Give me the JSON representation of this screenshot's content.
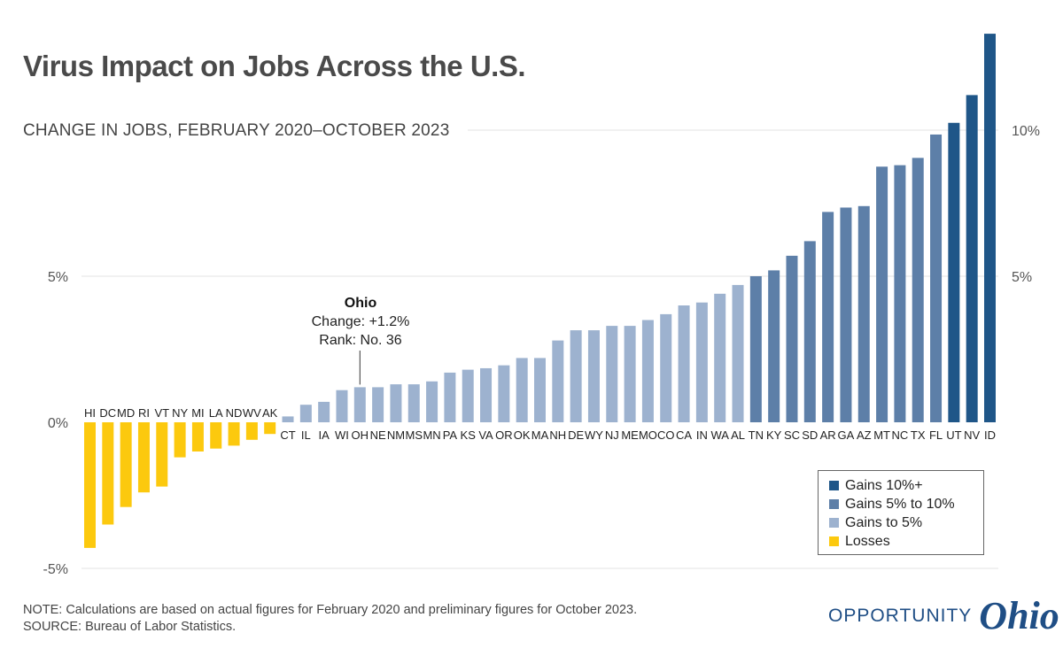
{
  "title": "Virus Impact on Jobs Across the U.S.",
  "subtitle": "CHANGE IN JOBS, FEBRUARY 2020–OCTOBER 2023",
  "annotation": {
    "name": "Ohio",
    "change": "Change: +1.2%",
    "rank": "Rank: No. 36",
    "category": "OH"
  },
  "legend": {
    "items": [
      {
        "label": "Gains 10%+",
        "color": "#1f5688"
      },
      {
        "label": "Gains 5% to 10%",
        "color": "#5d7fa8"
      },
      {
        "label": "Gains to 5%",
        "color": "#9db2cf"
      },
      {
        "label": "Losses",
        "color": "#fcc90e"
      }
    ]
  },
  "footer": {
    "note": "NOTE: Calculations are based on actual figures for February 2020 and preliminary figures for October 2023.",
    "source": "SOURCE: Bureau of Labor Statistics."
  },
  "logo": {
    "word": "OPPORTUNITY",
    "script": "Ohio"
  },
  "chart_data": {
    "type": "bar",
    "categories": [
      "HI",
      "DC",
      "MD",
      "RI",
      "VT",
      "NY",
      "MI",
      "LA",
      "ND",
      "WV",
      "AK",
      "CT",
      "IL",
      "IA",
      "WI",
      "OH",
      "NE",
      "NM",
      "MS",
      "MN",
      "PA",
      "KS",
      "VA",
      "OR",
      "OK",
      "MA",
      "NH",
      "DE",
      "WY",
      "NJ",
      "ME",
      "MO",
      "CO",
      "CA",
      "IN",
      "WA",
      "AL",
      "TN",
      "KY",
      "SC",
      "SD",
      "AR",
      "GA",
      "AZ",
      "MT",
      "NC",
      "TX",
      "FL",
      "UT",
      "NV",
      "ID"
    ],
    "values": [
      -4.3,
      -3.5,
      -2.9,
      -2.4,
      -2.2,
      -1.2,
      -1.0,
      -0.9,
      -0.8,
      -0.6,
      -0.4,
      0.2,
      0.6,
      0.7,
      1.1,
      1.2,
      1.2,
      1.3,
      1.3,
      1.4,
      1.7,
      1.8,
      1.85,
      1.95,
      2.2,
      2.2,
      2.8,
      3.15,
      3.15,
      3.3,
      3.3,
      3.5,
      3.7,
      4.0,
      4.1,
      4.4,
      4.7,
      5.0,
      5.2,
      5.7,
      6.2,
      7.2,
      7.35,
      7.4,
      8.75,
      8.8,
      9.05,
      9.85,
      10.25,
      11.2,
      13.3
    ],
    "color_groups": {
      "losses": "#fcc90e",
      "gains_to_5": "#9db2cf",
      "gains_5_to_10": "#5d7fa8",
      "gains_10_plus": "#1f5688"
    },
    "ylim": [
      -5.3,
      13.5
    ],
    "yticks": [
      {
        "value": -5,
        "label": "-5%"
      },
      {
        "value": 0,
        "label": "0%"
      },
      {
        "value": 5,
        "label": "5%"
      },
      {
        "value": 10,
        "label": "10%"
      }
    ],
    "right_ticks": [
      {
        "value": 5,
        "label": "5%"
      },
      {
        "value": 10,
        "label": "10%"
      }
    ],
    "grid": true,
    "legend_position": "bottom-right",
    "xlabel": "",
    "ylabel": ""
  }
}
